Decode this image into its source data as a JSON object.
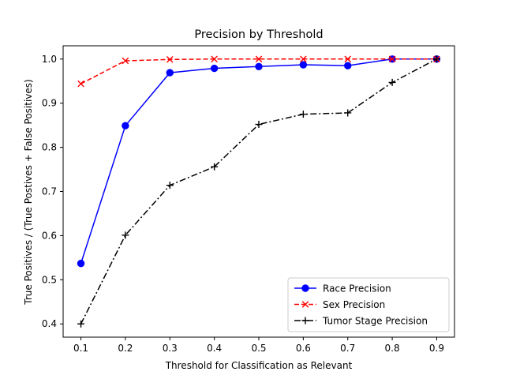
{
  "chart_data": {
    "type": "line",
    "title": "Precision by Threshold",
    "xlabel": "Threshold for Classification as Relevant",
    "ylabel": "True Positives / (True Postives + False Positives)",
    "x": [
      0.1,
      0.2,
      0.3,
      0.4,
      0.5,
      0.6,
      0.7,
      0.8,
      0.9
    ],
    "xticks": [
      "0.1",
      "0.2",
      "0.3",
      "0.4",
      "0.5",
      "0.6",
      "0.7",
      "0.8",
      "0.9"
    ],
    "yticks": [
      "0.4",
      "0.5",
      "0.6",
      "0.7",
      "0.8",
      "0.9",
      "1.0"
    ],
    "ytick_values": [
      0.4,
      0.5,
      0.6,
      0.7,
      0.8,
      0.9,
      1.0
    ],
    "xlim": [
      0.06,
      0.94
    ],
    "ylim": [
      0.37,
      1.03
    ],
    "grid": false,
    "legend_position": "lower-right",
    "series": [
      {
        "name": "Race Precision",
        "values": [
          0.537,
          0.849,
          0.969,
          0.979,
          0.983,
          0.987,
          0.985,
          1.0,
          1.0
        ],
        "color": "#0000ff",
        "linestyle": "solid",
        "marker": "circle"
      },
      {
        "name": "Sex Precision",
        "values": [
          0.944,
          0.996,
          0.999,
          1.0,
          1.0,
          1.0,
          1.0,
          1.0,
          1.0
        ],
        "color": "#ff0000",
        "linestyle": "dashed",
        "marker": "x"
      },
      {
        "name": "Tumor Stage Precision",
        "values": [
          0.4,
          0.601,
          0.714,
          0.756,
          0.852,
          0.875,
          0.878,
          0.947,
          1.0
        ],
        "color": "#000000",
        "linestyle": "dashdot",
        "marker": "plus"
      }
    ]
  }
}
